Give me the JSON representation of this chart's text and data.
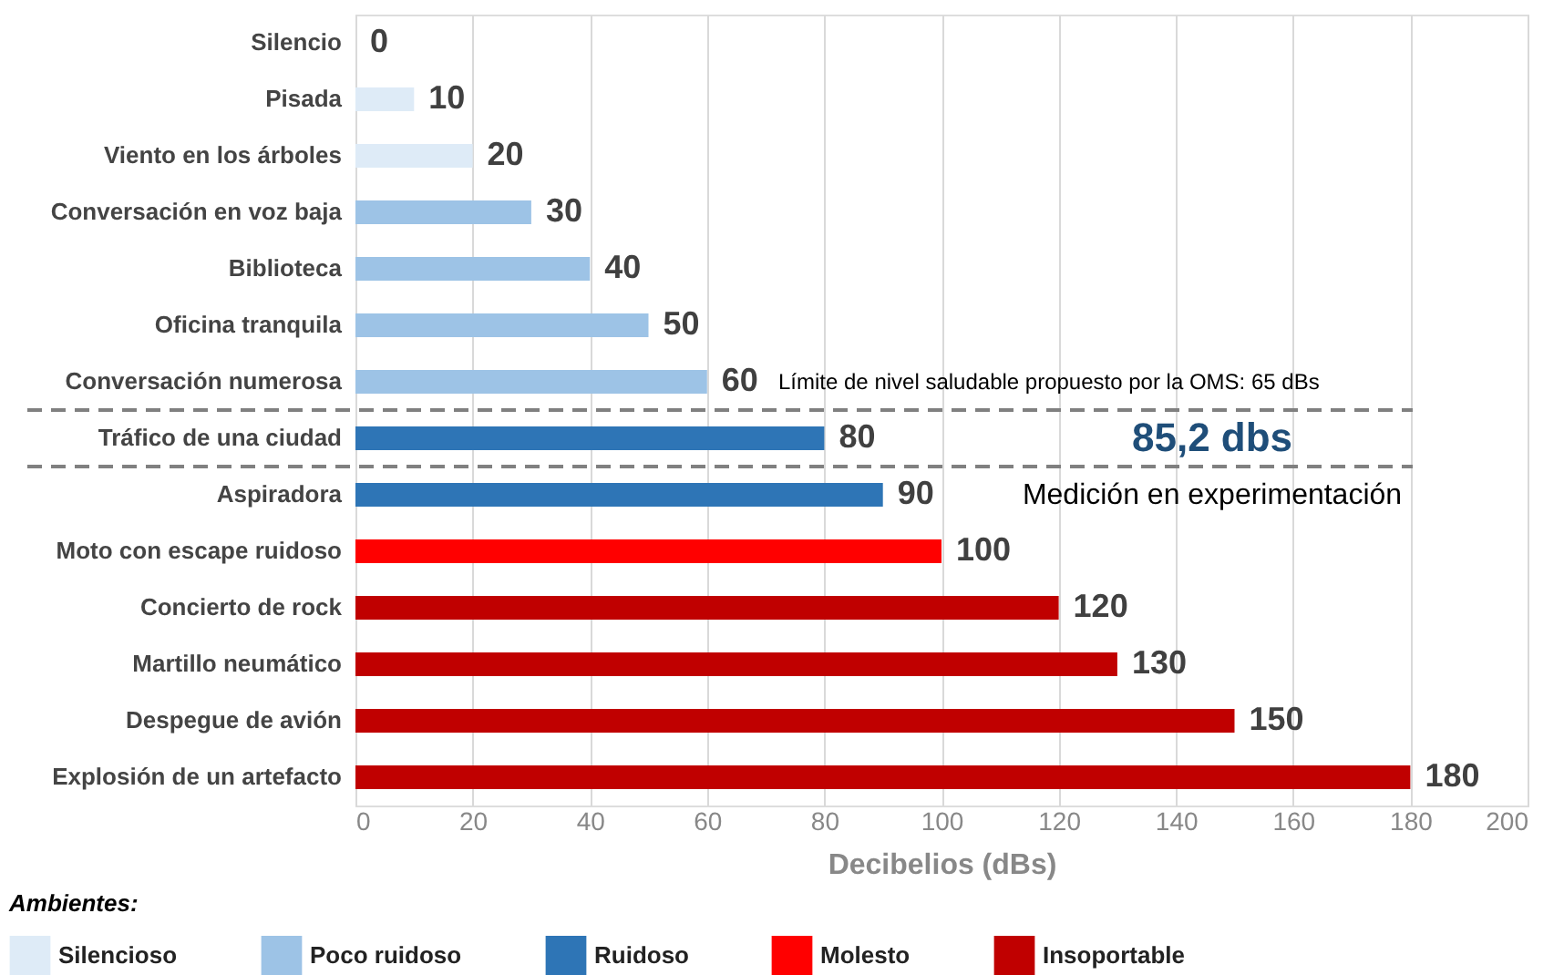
{
  "chart_data": {
    "type": "bar",
    "orientation": "horizontal",
    "xlabel": "Decibelios (dBs)",
    "legend_title": "Ambientes:",
    "legend": "bottom",
    "grid": "x",
    "data_labels": true,
    "categories": [
      "Silencio",
      "Pisada",
      "Viento en los árboles",
      "Conversación en voz baja",
      "Biblioteca",
      "Oficina tranquila",
      "Conversación numerosa",
      "Tráfico de una ciudad",
      "Aspiradora",
      "Moto con escape ruidoso",
      "Concierto de rock",
      "Martillo neumático",
      "Despegue de avión",
      "Explosión de un artefacto"
    ],
    "series": [
      {
        "name": "Silencioso",
        "color": "#deebf7",
        "values": [
          0,
          10,
          20,
          null,
          null,
          null,
          null,
          null,
          null,
          null,
          null,
          null,
          null,
          null
        ]
      },
      {
        "name": "Poco ruidoso",
        "color": "#9dc3e6",
        "values": [
          null,
          null,
          null,
          30,
          40,
          50,
          60,
          null,
          null,
          null,
          null,
          null,
          null,
          null
        ]
      },
      {
        "name": "Ruidoso",
        "color": "#2e75b6",
        "values": [
          null,
          null,
          null,
          null,
          null,
          null,
          null,
          80,
          90,
          null,
          null,
          null,
          null,
          null
        ]
      },
      {
        "name": "Molesto",
        "color": "#ff0000",
        "values": [
          null,
          null,
          null,
          null,
          null,
          null,
          null,
          null,
          null,
          100,
          null,
          null,
          null,
          null
        ]
      },
      {
        "name": "Insoportable",
        "color": "#c00000",
        "values": [
          null,
          null,
          null,
          null,
          null,
          null,
          null,
          null,
          null,
          null,
          120,
          130,
          150,
          180
        ]
      }
    ],
    "xlim": [
      0,
      200
    ],
    "xticks": [
      0,
      20,
      40,
      60,
      80,
      100,
      120,
      140,
      160,
      180,
      200
    ],
    "annotations": [
      "Límite de nivel saludable propuesto por la OMS: 65 dBs",
      "85,2 dbs",
      "Medición en experimentación"
    ]
  }
}
